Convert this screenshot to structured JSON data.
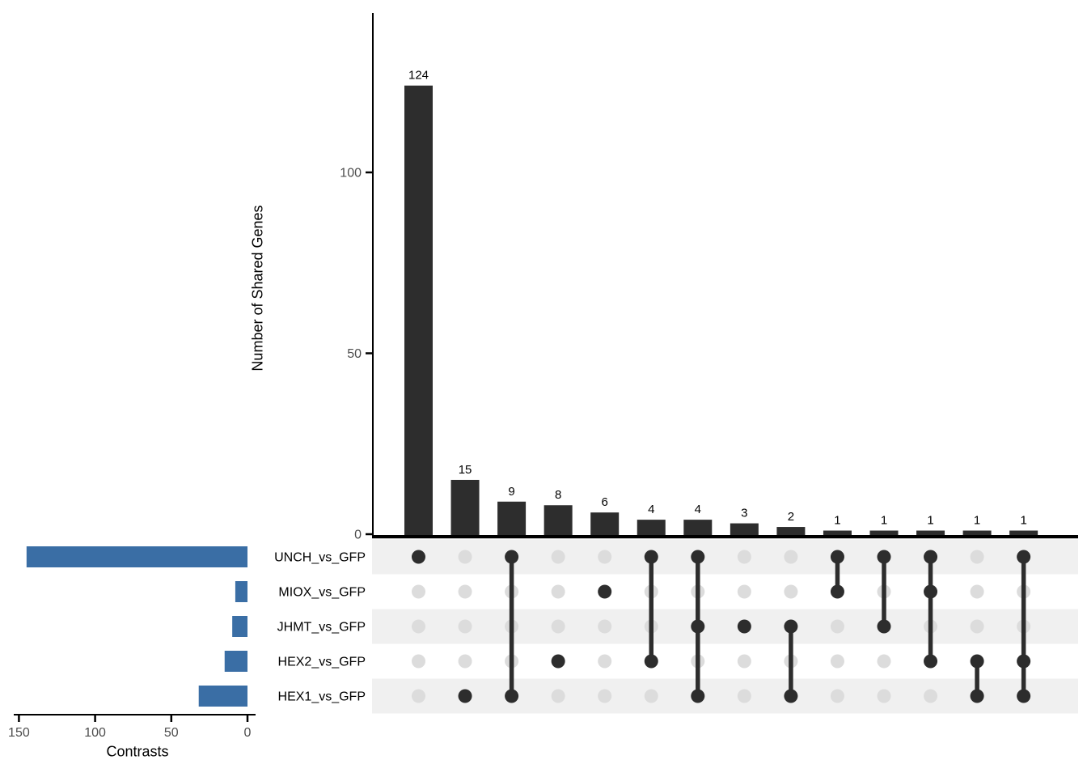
{
  "chart_data": {
    "type": "upset",
    "top_axis": {
      "label": "Number of Shared Genes",
      "ticks": [
        0,
        50,
        100
      ]
    },
    "left_axis": {
      "label": "Contrasts",
      "ticks": [
        150,
        100,
        50,
        0
      ]
    },
    "sets": [
      {
        "name": "UNCH_vs_GFP",
        "size": 145
      },
      {
        "name": "MIOX_vs_GFP",
        "size": 8
      },
      {
        "name": "JHMT_vs_GFP",
        "size": 10
      },
      {
        "name": "HEX2_vs_GFP",
        "size": 15
      },
      {
        "name": "HEX1_vs_GFP",
        "size": 32
      }
    ],
    "intersections": [
      {
        "members": [
          "UNCH_vs_GFP"
        ],
        "value": 124
      },
      {
        "members": [
          "HEX1_vs_GFP"
        ],
        "value": 15
      },
      {
        "members": [
          "UNCH_vs_GFP",
          "HEX1_vs_GFP"
        ],
        "value": 9
      },
      {
        "members": [
          "HEX2_vs_GFP"
        ],
        "value": 8
      },
      {
        "members": [
          "MIOX_vs_GFP"
        ],
        "value": 6
      },
      {
        "members": [
          "UNCH_vs_GFP",
          "HEX2_vs_GFP"
        ],
        "value": 4
      },
      {
        "members": [
          "UNCH_vs_GFP",
          "JHMT_vs_GFP",
          "HEX1_vs_GFP"
        ],
        "value": 4
      },
      {
        "members": [
          "JHMT_vs_GFP"
        ],
        "value": 3
      },
      {
        "members": [
          "JHMT_vs_GFP",
          "HEX1_vs_GFP"
        ],
        "value": 2
      },
      {
        "members": [
          "UNCH_vs_GFP",
          "MIOX_vs_GFP"
        ],
        "value": 1
      },
      {
        "members": [
          "UNCH_vs_GFP",
          "JHMT_vs_GFP"
        ],
        "value": 1
      },
      {
        "members": [
          "UNCH_vs_GFP",
          "MIOX_vs_GFP",
          "HEX2_vs_GFP"
        ],
        "value": 1
      },
      {
        "members": [
          "HEX2_vs_GFP",
          "HEX1_vs_GFP"
        ],
        "value": 1
      },
      {
        "members": [
          "UNCH_vs_GFP",
          "HEX2_vs_GFP",
          "HEX1_vs_GFP"
        ],
        "value": 1
      }
    ],
    "colors": {
      "intersection_bar": "#2d2d2d",
      "set_bar": "#3a6ea5",
      "dot_filled": "#2d2d2d",
      "dot_empty": "#dcdcdc",
      "stripe": "#f0f0f0",
      "axis_line": "#000000",
      "tick_text": "#4d4d4d",
      "label_text": "#000000"
    }
  }
}
